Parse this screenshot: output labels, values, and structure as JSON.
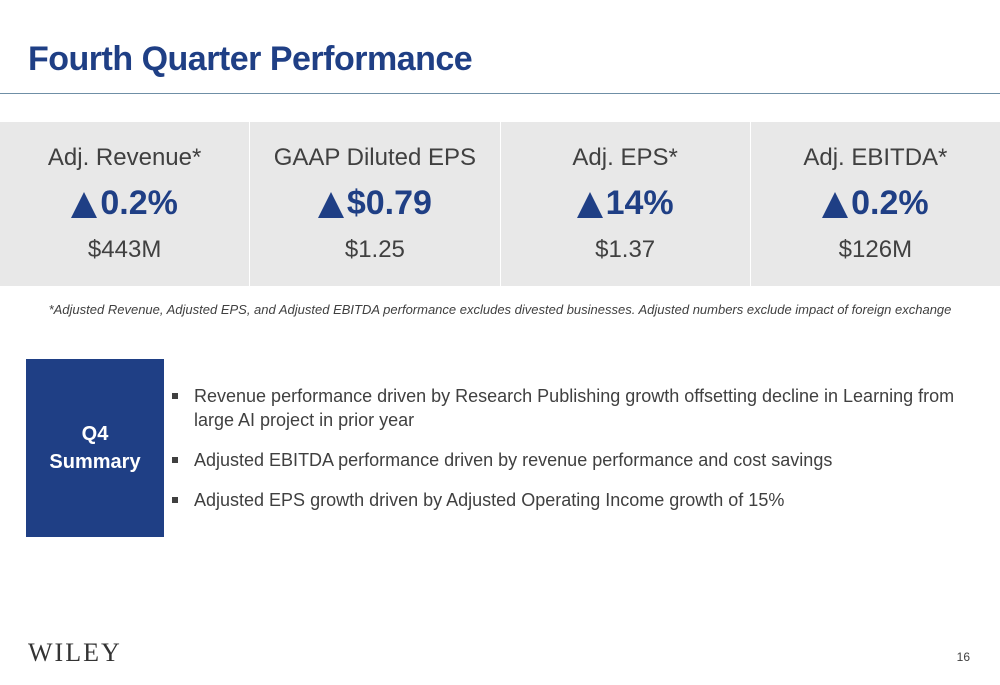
{
  "slide": {
    "title": "Fourth Quarter Performance",
    "accent_color": "#1f3f85"
  },
  "metrics": [
    {
      "label": "Adj. Revenue*",
      "direction": "up",
      "change": "0.2%",
      "value": "$443M"
    },
    {
      "label": "GAAP Diluted EPS",
      "direction": "up",
      "change": "$0.79",
      "value": "$1.25"
    },
    {
      "label": "Adj. EPS*",
      "direction": "up",
      "change": "14%",
      "value": "$1.37"
    },
    {
      "label": "Adj. EBITDA*",
      "direction": "up",
      "change": "0.2%",
      "value": "$126M"
    }
  ],
  "footnote": "*Adjusted Revenue, Adjusted EPS, and Adjusted EBITDA performance excludes divested businesses.  Adjusted numbers exclude impact of foreign exchange",
  "summary": {
    "heading_line1": "Q4",
    "heading_line2": "Summary",
    "bullets": [
      "Revenue performance driven by Research Publishing growth offsetting decline in Learning from large AI project in prior year",
      "Adjusted EBITDA performance driven by revenue performance and cost savings",
      "Adjusted EPS growth driven by Adjusted Operating Income growth of 15%"
    ]
  },
  "footer": {
    "logo_text": "WILEY",
    "page_number": "16"
  }
}
